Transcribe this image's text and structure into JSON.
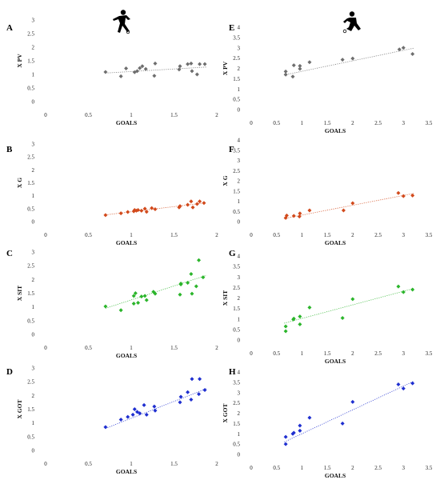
{
  "chart_data": [
    {
      "panel": "A",
      "type": "scatter",
      "ylabel": "X PV",
      "xlabel": "GOALS",
      "xlim": [
        0,
        2
      ],
      "ylim": [
        0,
        3
      ],
      "xticks": [
        "0",
        "0.5",
        "1",
        "1.5",
        "2"
      ],
      "yticks": [
        "0",
        "0.5",
        "1",
        "1.5",
        "2",
        "2.5",
        "3"
      ],
      "marker": "diamond",
      "color": "#6e6e6e",
      "points": [
        [
          0.7,
          1.09
        ],
        [
          0.88,
          0.93
        ],
        [
          0.94,
          1.22
        ],
        [
          1.04,
          1.08
        ],
        [
          1.07,
          1.12
        ],
        [
          1.1,
          1.23
        ],
        [
          1.13,
          1.3
        ],
        [
          1.17,
          1.2
        ],
        [
          1.27,
          0.95
        ],
        [
          1.28,
          1.4
        ],
        [
          1.56,
          1.18
        ],
        [
          1.57,
          1.3
        ],
        [
          1.66,
          1.38
        ],
        [
          1.7,
          1.4
        ],
        [
          1.71,
          1.12
        ],
        [
          1.77,
          1.0
        ],
        [
          1.8,
          1.38
        ],
        [
          1.86,
          1.38
        ]
      ],
      "trend": [
        [
          0.7,
          1.05
        ],
        [
          1.88,
          1.27
        ]
      ]
    },
    {
      "panel": "E",
      "type": "scatter",
      "ylabel": "X PV",
      "xlabel": "GOALS",
      "xlim": [
        0,
        3.5
      ],
      "ylim": [
        0,
        4
      ],
      "xticks": [
        "0",
        "0.5",
        "1",
        "1.5",
        "2",
        "2.5",
        "3",
        "3.5"
      ],
      "yticks": [
        "0",
        "0.5",
        "1",
        "1.5",
        "2",
        "2.5",
        "3",
        "3.5",
        "4"
      ],
      "marker": "diamond",
      "color": "#6e6e6e",
      "points": [
        [
          0.68,
          1.7
        ],
        [
          0.68,
          1.85
        ],
        [
          0.82,
          1.6
        ],
        [
          0.84,
          2.15
        ],
        [
          0.96,
          1.98
        ],
        [
          0.96,
          2.12
        ],
        [
          1.15,
          2.3
        ],
        [
          1.8,
          2.42
        ],
        [
          2.0,
          2.48
        ],
        [
          2.92,
          2.92
        ],
        [
          3.0,
          3.0
        ],
        [
          3.18,
          2.7
        ]
      ],
      "trend": [
        [
          0.65,
          1.68
        ],
        [
          3.2,
          2.98
        ]
      ]
    },
    {
      "panel": "B",
      "type": "scatter",
      "ylabel": "X G",
      "xlabel": "GOALS",
      "xlim": [
        0,
        2
      ],
      "ylim": [
        0,
        3
      ],
      "xticks": [
        "0",
        "0.5",
        "1",
        "1.5",
        "2"
      ],
      "yticks": [
        "0",
        "0.5",
        "1",
        "1.5",
        "2",
        "2.5",
        "3"
      ],
      "marker": "diamond",
      "color": "#d24a1c",
      "points": [
        [
          0.7,
          0.25
        ],
        [
          0.88,
          0.32
        ],
        [
          0.96,
          0.37
        ],
        [
          1.03,
          0.4
        ],
        [
          1.04,
          0.45
        ],
        [
          1.06,
          0.42
        ],
        [
          1.08,
          0.45
        ],
        [
          1.12,
          0.42
        ],
        [
          1.16,
          0.5
        ],
        [
          1.18,
          0.38
        ],
        [
          1.24,
          0.52
        ],
        [
          1.28,
          0.48
        ],
        [
          1.56,
          0.55
        ],
        [
          1.57,
          0.6
        ],
        [
          1.66,
          0.65
        ],
        [
          1.7,
          0.78
        ],
        [
          1.72,
          0.55
        ],
        [
          1.77,
          0.68
        ],
        [
          1.8,
          0.78
        ],
        [
          1.85,
          0.72
        ]
      ],
      "trend": [
        [
          0.7,
          0.26
        ],
        [
          1.88,
          0.73
        ]
      ]
    },
    {
      "panel": "F",
      "type": "scatter",
      "ylabel": "X G",
      "xlabel": "GOALS",
      "xlim": [
        0,
        3.5
      ],
      "ylim": [
        0,
        4
      ],
      "xticks": [
        "0",
        "0.5",
        "1",
        "1.5",
        "2",
        "2.5",
        "3",
        "3.5"
      ],
      "yticks": [
        "0",
        "0.5",
        "1",
        "1.5",
        "2",
        "2.5",
        "3",
        "3.5",
        "4"
      ],
      "marker": "diamond",
      "color": "#d24a1c",
      "points": [
        [
          0.68,
          0.18
        ],
        [
          0.7,
          0.3
        ],
        [
          0.84,
          0.28
        ],
        [
          0.95,
          0.25
        ],
        [
          0.96,
          0.4
        ],
        [
          1.15,
          0.55
        ],
        [
          1.82,
          0.55
        ],
        [
          2.0,
          0.9
        ],
        [
          2.9,
          1.4
        ],
        [
          3.0,
          1.25
        ],
        [
          3.18,
          1.28
        ]
      ],
      "trend": [
        [
          0.65,
          0.15
        ],
        [
          3.2,
          1.38
        ]
      ]
    },
    {
      "panel": "C",
      "type": "scatter",
      "ylabel": "X SIT",
      "xlabel": "GOALS",
      "xlim": [
        0,
        2
      ],
      "ylim": [
        0,
        3
      ],
      "xticks": [
        "0",
        "0.5",
        "1",
        "1.5",
        "2"
      ],
      "yticks": [
        "0",
        "0.5",
        "1",
        "1.5",
        "2",
        "2.5",
        "3"
      ],
      "marker": "diamond",
      "color": "#2bb52b",
      "points": [
        [
          0.7,
          1.02
        ],
        [
          0.88,
          0.88
        ],
        [
          1.03,
          1.12
        ],
        [
          1.03,
          1.4
        ],
        [
          1.05,
          1.5
        ],
        [
          1.08,
          1.15
        ],
        [
          1.12,
          1.38
        ],
        [
          1.16,
          1.4
        ],
        [
          1.18,
          1.25
        ],
        [
          1.26,
          1.55
        ],
        [
          1.28,
          1.48
        ],
        [
          1.57,
          1.45
        ],
        [
          1.58,
          1.82
        ],
        [
          1.58,
          1.85
        ],
        [
          1.66,
          1.88
        ],
        [
          1.7,
          2.2
        ],
        [
          1.71,
          1.48
        ],
        [
          1.76,
          1.75
        ],
        [
          1.79,
          2.7
        ],
        [
          1.84,
          2.08
        ]
      ],
      "trend": [
        [
          0.7,
          0.95
        ],
        [
          1.88,
          2.15
        ]
      ]
    },
    {
      "panel": "G",
      "type": "scatter",
      "ylabel": "X SIT",
      "xlabel": "GOALS",
      "xlim": [
        0,
        3.5
      ],
      "ylim": [
        0,
        4
      ],
      "xticks": [
        "0",
        "0.5",
        "1",
        "1.5",
        "2",
        "2.5",
        "3",
        "3.5"
      ],
      "yticks": [
        "0",
        "0.5",
        "1",
        "1.5",
        "2",
        "2.5",
        "3",
        "3.5",
        "4"
      ],
      "marker": "diamond",
      "color": "#2bb52b",
      "points": [
        [
          0.68,
          0.42
        ],
        [
          0.68,
          0.65
        ],
        [
          0.83,
          0.98
        ],
        [
          0.84,
          1.02
        ],
        [
          0.96,
          0.75
        ],
        [
          0.96,
          1.12
        ],
        [
          1.15,
          1.55
        ],
        [
          1.8,
          1.05
        ],
        [
          2.0,
          1.95
        ],
        [
          2.9,
          2.55
        ],
        [
          3.0,
          2.28
        ],
        [
          3.18,
          2.4
        ]
      ],
      "trend": [
        [
          0.65,
          0.8
        ],
        [
          3.2,
          2.45
        ]
      ]
    },
    {
      "panel": "D",
      "type": "scatter",
      "ylabel": "X GOT",
      "xlabel": "GOALS",
      "xlim": [
        0,
        2
      ],
      "ylim": [
        0,
        3
      ],
      "xticks": [
        "0",
        "0.5",
        "1",
        "1.5",
        "2"
      ],
      "yticks": [
        "0",
        "0.5",
        "1",
        "1.5",
        "2",
        "2.5",
        "3"
      ],
      "marker": "diamond",
      "color": "#1f2fd0",
      "points": [
        [
          0.7,
          0.85
        ],
        [
          0.88,
          1.12
        ],
        [
          0.96,
          1.22
        ],
        [
          1.02,
          1.3
        ],
        [
          1.04,
          1.5
        ],
        [
          1.07,
          1.4
        ],
        [
          1.1,
          1.35
        ],
        [
          1.15,
          1.65
        ],
        [
          1.18,
          1.3
        ],
        [
          1.27,
          1.6
        ],
        [
          1.28,
          1.45
        ],
        [
          1.57,
          1.75
        ],
        [
          1.58,
          1.95
        ],
        [
          1.66,
          2.12
        ],
        [
          1.7,
          1.85
        ],
        [
          1.71,
          2.6
        ],
        [
          1.79,
          2.05
        ],
        [
          1.8,
          2.6
        ],
        [
          1.86,
          2.2
        ]
      ],
      "trend": [
        [
          0.7,
          0.8
        ],
        [
          1.88,
          2.25
        ]
      ]
    },
    {
      "panel": "H",
      "type": "scatter",
      "ylabel": "X GOT",
      "xlabel": "GOALS",
      "xlim": [
        0,
        3.5
      ],
      "ylim": [
        0,
        4
      ],
      "xticks": [
        "0",
        "0.5",
        "1",
        "1.5",
        "2",
        "2.5",
        "3",
        "3.5"
      ],
      "yticks": [
        "0",
        "0.5",
        "1",
        "1.5",
        "2",
        "2.5",
        "3",
        "3.5",
        "4"
      ],
      "marker": "diamond",
      "color": "#1f2fd0",
      "points": [
        [
          0.68,
          0.5
        ],
        [
          0.68,
          0.85
        ],
        [
          0.82,
          1.0
        ],
        [
          0.84,
          1.05
        ],
        [
          0.96,
          1.15
        ],
        [
          0.96,
          1.4
        ],
        [
          1.15,
          1.78
        ],
        [
          1.8,
          1.5
        ],
        [
          2.0,
          2.55
        ],
        [
          2.9,
          3.4
        ],
        [
          3.0,
          3.2
        ],
        [
          3.18,
          3.45
        ]
      ],
      "trend": [
        [
          0.65,
          0.6
        ],
        [
          3.2,
          3.55
        ]
      ]
    }
  ],
  "icons": {
    "left": "soccer-player-silhouette-icon",
    "right": "soccer-player-silhouette-icon"
  }
}
